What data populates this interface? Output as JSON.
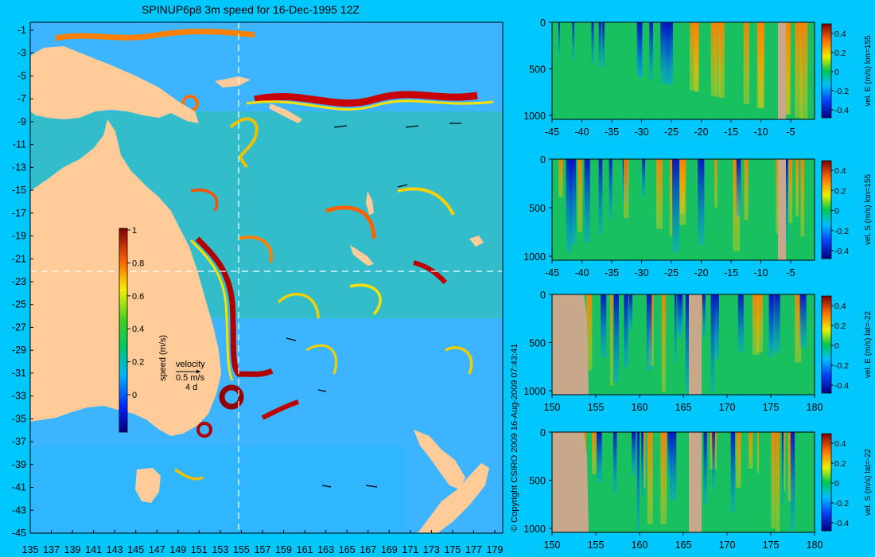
{
  "map": {
    "title": "SPINUP6p8 3m speed for 16-Dec-1995 12Z",
    "lon_ticks": [
      "135",
      "137",
      "139",
      "141",
      "143",
      "145",
      "147",
      "149",
      "151",
      "153",
      "155",
      "157",
      "159",
      "161",
      "163",
      "165",
      "167",
      "169",
      "171",
      "173",
      "175",
      "177",
      "179"
    ],
    "lat_ticks": [
      "-1",
      "-3",
      "-5",
      "-7",
      "-9",
      "-11",
      "-13",
      "-15",
      "-17",
      "-19",
      "-21",
      "-23",
      "-25",
      "-27",
      "-29",
      "-31",
      "-33",
      "-35",
      "-37",
      "-39",
      "-41",
      "-43",
      "-45"
    ],
    "colorbar": {
      "label": "speed (m/s)",
      "ticks": [
        "1",
        "0.8",
        "0.6",
        "0.4",
        "0.2",
        "0"
      ]
    },
    "velocity_key": {
      "title": "velocity",
      "speed": "0.5 m/s",
      "duration": "4 d"
    },
    "crosshair": {
      "lon": 155,
      "lat": -22
    },
    "colors": {
      "land": "#ffcc99",
      "background": "#00c8ff",
      "ocean": "#3cb4ff"
    }
  },
  "copyright": "© Copyright CSIRO 2009  16-Aug-2009 07:43:41",
  "panels": [
    {
      "label": "vel. E (m/s) lon=155",
      "x_ticks": [
        "-45",
        "-40",
        "-35",
        "-30",
        "-25",
        "-20",
        "-15",
        "-10",
        "-5"
      ],
      "y_ticks": [
        "0",
        "500",
        "1000"
      ],
      "cbar_ticks": [
        "0.4",
        "0.2",
        "0",
        "-0.2",
        "-0.4"
      ]
    },
    {
      "label": "vel. S (m/s) lon=155",
      "x_ticks": [
        "-45",
        "-40",
        "-35",
        "-30",
        "-25",
        "-20",
        "-15",
        "-10",
        "-5"
      ],
      "y_ticks": [
        "0",
        "500",
        "1000"
      ],
      "cbar_ticks": [
        "0.4",
        "0.2",
        "0",
        "-0.2",
        "-0.4"
      ]
    },
    {
      "label": "vel. E (m/s) lat=-22",
      "x_ticks": [
        "150",
        "155",
        "160",
        "165",
        "170",
        "175",
        "180"
      ],
      "y_ticks": [
        "0",
        "500",
        "1000"
      ],
      "cbar_ticks": [
        "0.4",
        "0.2",
        "0",
        "-0.2",
        "-0.4"
      ]
    },
    {
      "label": "vel. S (m/s) lat=-22",
      "x_ticks": [
        "150",
        "155",
        "160",
        "165",
        "170",
        "175",
        "180"
      ],
      "y_ticks": [
        "0",
        "500",
        "1000"
      ],
      "cbar_ticks": [
        "0.4",
        "0.2",
        "0",
        "-0.2",
        "-0.4"
      ]
    }
  ]
}
